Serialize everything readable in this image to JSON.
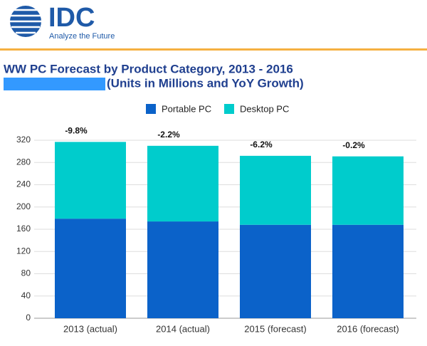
{
  "header": {
    "logo": "IDC",
    "tagline": "Analyze the Future"
  },
  "chart_data": {
    "type": "stacked-bar",
    "title": "WW PC Forecast by Product Category, 2013 - 2016",
    "subtitle": "(Units in Millions and YoY Growth)",
    "categories": [
      "2013 (actual)",
      "2014 (actual)",
      "2015 (forecast)",
      "2016 (forecast)"
    ],
    "series": [
      {
        "name": "Portable PC",
        "color": "#0b62c9",
        "values": [
          179,
          174,
          168,
          168
        ]
      },
      {
        "name": "Desktop PC",
        "color": "#00cccc",
        "values": [
          138,
          136,
          124,
          123
        ]
      }
    ],
    "annotations": [
      "-9.8%",
      "-2.2%",
      "-6.2%",
      "-0.2%"
    ],
    "ylim": [
      0,
      320
    ],
    "yticks": [
      0,
      40,
      80,
      120,
      160,
      200,
      240,
      280,
      320
    ],
    "grid": true,
    "legend": "top"
  }
}
